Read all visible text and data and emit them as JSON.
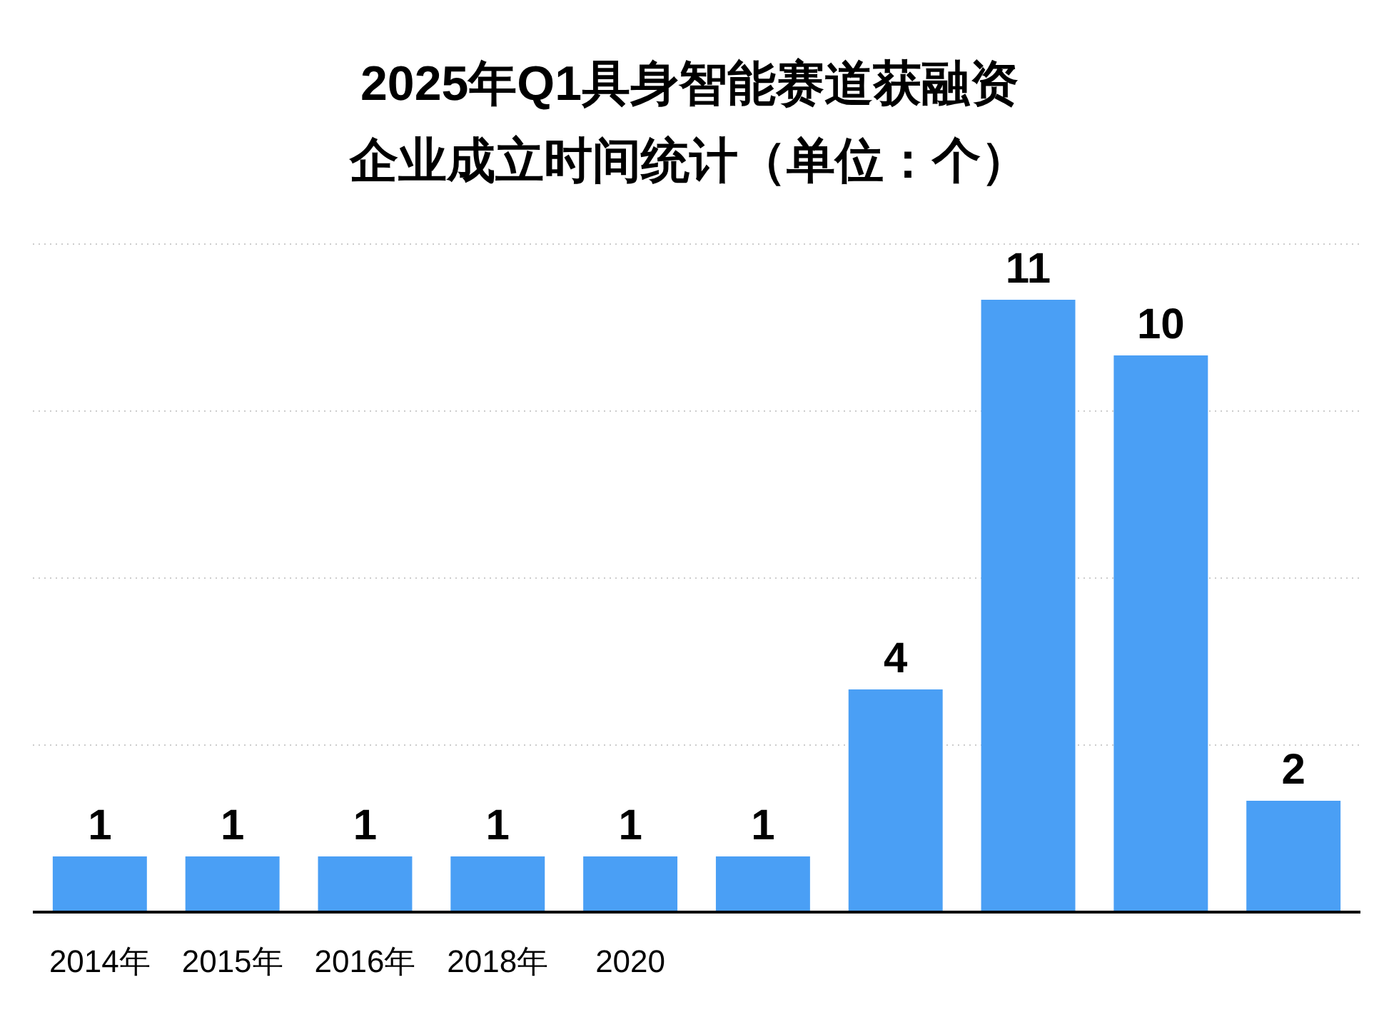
{
  "chart_data": {
    "type": "bar",
    "title": "2025年Q1具身智能赛道获融资",
    "subtitle": "企业成立时间统计（单位：个）",
    "categories": [
      "2014年",
      "2015年",
      "2016年",
      "2018年",
      "2020",
      null,
      null,
      null,
      null,
      null
    ],
    "values": [
      1,
      1,
      1,
      1,
      1,
      1,
      4,
      11,
      10,
      2
    ],
    "color": "#4a9ff5",
    "ylim": [
      0,
      12
    ],
    "yticks": [
      {
        "value": 0,
        "label": null
      },
      {
        "value": 3,
        "label": null
      },
      {
        "value": 6,
        "label": null
      },
      {
        "value": 9,
        "label": null
      },
      {
        "value": 12,
        "label": null
      }
    ],
    "grid": "y",
    "data_labels": true,
    "tick_labels": "x"
  }
}
